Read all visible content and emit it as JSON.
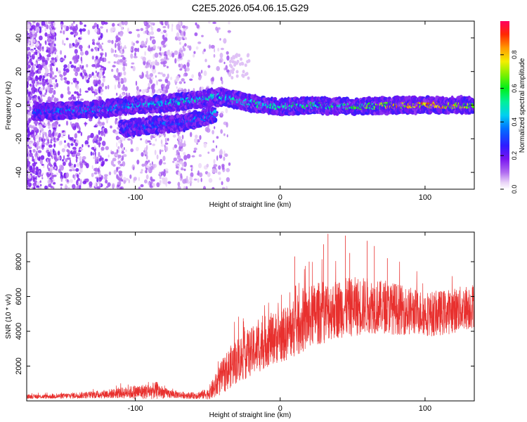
{
  "chart_data": [
    {
      "type": "heatmap",
      "title": "C2E5.2026.054.06.15.G29",
      "xlabel": "Height of straight line (km)",
      "ylabel": "Frequency (Hz)",
      "xlim": [
        -175,
        134
      ],
      "ylim": [
        -50,
        50
      ],
      "xticks": [
        -100,
        0,
        100
      ],
      "yticks": [
        -40,
        -20,
        0,
        20,
        40
      ],
      "colorbar": {
        "label": "Normalized spectral amplitude",
        "range": [
          0,
          1
        ],
        "ticks": [
          0.0,
          0.2,
          0.4,
          0.6,
          0.8
        ],
        "tick_labels": [
          "0.0",
          "0.2",
          "0.4",
          "0.6",
          "0.8"
        ],
        "colormap": "rainbow"
      },
      "features": [
        {
          "name": "main-trace",
          "points": [
            [
              -170,
              -4
            ],
            [
              -140,
              -3
            ],
            [
              -120,
              -2
            ],
            [
              -100,
              0
            ],
            [
              -80,
              1
            ],
            [
              -60,
              3
            ],
            [
              -45,
              5
            ],
            [
              -35,
              4
            ],
            [
              -20,
              1
            ],
            [
              0,
              -1
            ],
            [
              20,
              0
            ],
            [
              50,
              -1
            ],
            [
              80,
              0
            ],
            [
              100,
              0
            ],
            [
              134,
              0
            ]
          ],
          "amplitude": [
            0.35,
            0.4,
            0.4,
            0.45,
            0.5,
            0.5,
            0.55,
            0.5,
            0.55,
            0.55,
            0.6,
            0.6,
            0.85,
            0.92,
            0.75
          ]
        },
        {
          "name": "lower-branch",
          "points": [
            [
              -110,
              -14
            ],
            [
              -90,
              -12
            ],
            [
              -70,
              -11
            ],
            [
              -55,
              -8
            ],
            [
              -45,
              -5
            ]
          ],
          "amplitude": [
            0.3,
            0.35,
            0.35,
            0.4,
            0.45
          ]
        }
      ]
    },
    {
      "type": "line",
      "xlabel": "Height of straight line (km)",
      "ylabel": "SNR (10 * v/v)",
      "xlim": [
        -175,
        134
      ],
      "ylim": [
        0,
        9700
      ],
      "xticks": [
        -100,
        0,
        100
      ],
      "yticks": [
        2000,
        4000,
        6000,
        8000
      ],
      "series": [
        {
          "name": "SNR",
          "color": "#e8302e",
          "x": [
            -175,
            -160,
            -150,
            -140,
            -130,
            -120,
            -110,
            -100,
            -90,
            -85,
            -80,
            -70,
            -60,
            -50,
            -45,
            -40,
            -35,
            -30,
            -25,
            -20,
            -15,
            -10,
            -5,
            0,
            5,
            10,
            15,
            20,
            25,
            30,
            35,
            40,
            45,
            50,
            55,
            60,
            65,
            70,
            75,
            80,
            85,
            90,
            95,
            100,
            105,
            110,
            115,
            120,
            125,
            130,
            134
          ],
          "values": [
            250,
            250,
            280,
            320,
            350,
            400,
            450,
            500,
            550,
            600,
            450,
            350,
            300,
            400,
            800,
            1400,
            1900,
            2300,
            2600,
            2800,
            3100,
            3400,
            3600,
            3700,
            3900,
            4200,
            4500,
            4800,
            5000,
            5100,
            5200,
            5300,
            5350,
            5400,
            5450,
            5500,
            5450,
            5400,
            5350,
            5300,
            5200,
            5150,
            5100,
            5050,
            5000,
            5050,
            5100,
            5200,
            5300,
            5400,
            5500
          ],
          "spread": [
            120,
            120,
            150,
            180,
            200,
            250,
            300,
            400,
            450,
            500,
            300,
            200,
            180,
            300,
            700,
            1000,
            1200,
            1300,
            1400,
            1400,
            1500,
            1500,
            1500,
            1500,
            1600,
            1700,
            1800,
            1800,
            1800,
            1800,
            1700,
            1700,
            1700,
            1700,
            1700,
            1600,
            1600,
            1500,
            1500,
            1500,
            1400,
            1400,
            1300,
            1300,
            1300,
            1300,
            1300,
            1300,
            1300,
            1300,
            1300
          ],
          "peaks": [
            [
              33,
              9600
            ],
            [
              45,
              9500
            ],
            [
              60,
              9200
            ],
            [
              30,
              9000
            ],
            [
              10,
              8300
            ],
            [
              20,
              8000
            ],
            [
              48,
              8500
            ],
            [
              74,
              8200
            ],
            [
              65,
              8900
            ]
          ]
        }
      ]
    }
  ]
}
